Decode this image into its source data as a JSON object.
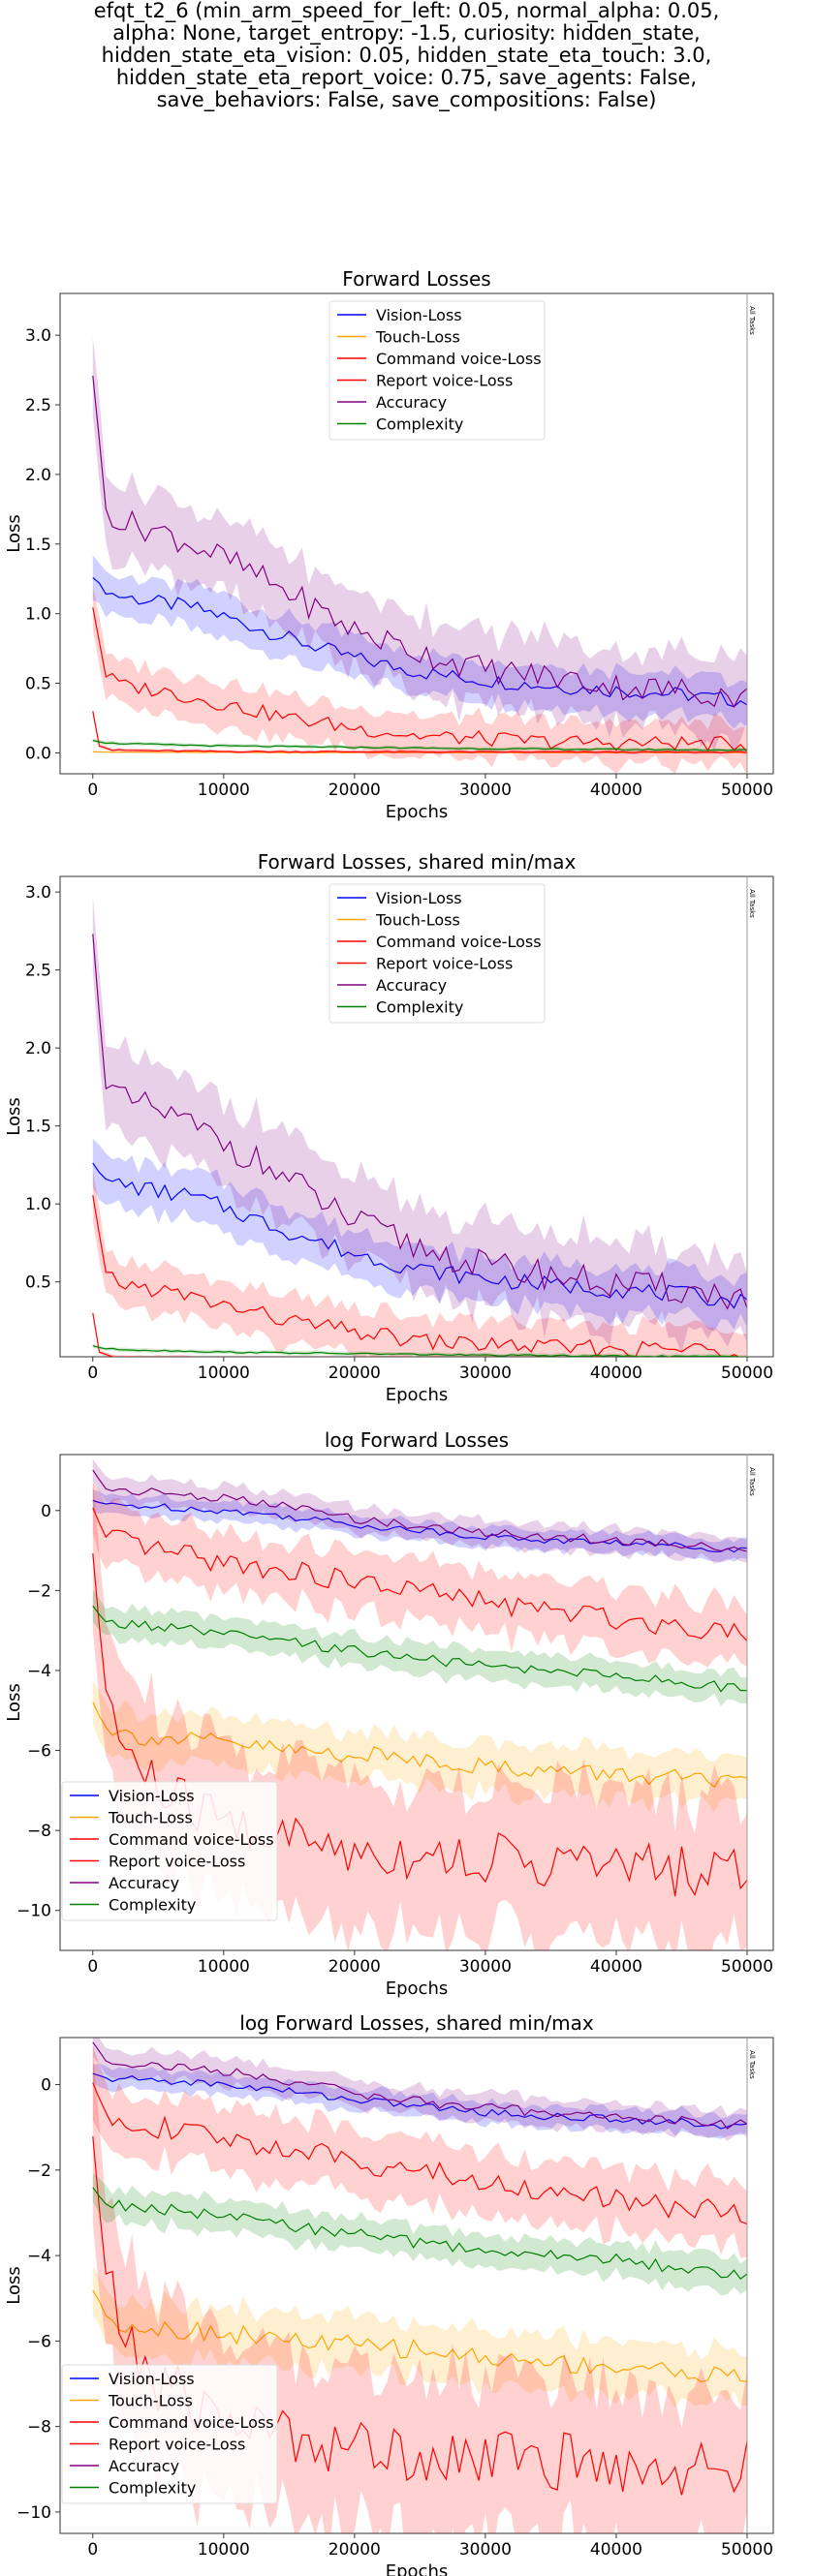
{
  "suptitle_lines": [
    "efqt_t2_6 (min_arm_speed_for_left: 0.05, normal_alpha: 0.05,",
    "alpha: None, target_entropy: -1.5, curiosity: hidden_state,",
    "hidden_state_eta_vision: 0.05, hidden_state_eta_touch: 3.0,",
    "hidden_state_eta_report_voice: 0.75, save_agents: False,",
    "save_behaviors: False, save_compositions: False)"
  ],
  "colors": {
    "vision": "#0000ff",
    "touch": "#ffa500",
    "command": "#ff0000",
    "report": "#ff0000",
    "accuracy": "#800080",
    "complexity": "#008000"
  },
  "chart_data": [
    {
      "type": "line",
      "title": "Forward Losses",
      "xlabel": "Epochs",
      "ylabel": "Loss",
      "xlim": [
        -2500,
        52000
      ],
      "ylim": [
        -0.15,
        3.3
      ],
      "xticks": [
        0,
        10000,
        20000,
        30000,
        40000,
        50000
      ],
      "yticks": [
        0.0,
        0.5,
        1.0,
        1.5,
        2.0,
        2.5,
        3.0
      ],
      "ytick_labels": [
        "0.0",
        "0.5",
        "1.0",
        "1.5",
        "2.0",
        "2.5",
        "3.0"
      ],
      "legend_position": "upper center",
      "vline": {
        "x": 50000,
        "label": "All Tasks"
      },
      "series": [
        {
          "name": "Vision-Loss",
          "color": "vision",
          "x": [
            0,
            1000,
            2500,
            5000,
            7500,
            10000,
            15000,
            20000,
            25000,
            30000,
            35000,
            40000,
            45000,
            50000
          ],
          "values": [
            1.27,
            1.15,
            1.12,
            1.08,
            1.05,
            0.98,
            0.82,
            0.68,
            0.58,
            0.52,
            0.48,
            0.45,
            0.42,
            0.37
          ],
          "band": 0.12
        },
        {
          "name": "Touch-Loss",
          "color": "touch",
          "x": [
            0,
            1000,
            5000,
            10000,
            20000,
            30000,
            40000,
            50000
          ],
          "values": [
            0.008,
            0.005,
            0.004,
            0.004,
            0.003,
            0.003,
            0.003,
            0.003
          ],
          "band": 0.003
        },
        {
          "name": "Command voice-Loss",
          "color": "command",
          "x": [
            0,
            500,
            1500,
            5000,
            10000,
            20000,
            30000,
            40000,
            50000
          ],
          "values": [
            0.3,
            0.05,
            0.02,
            0.015,
            0.01,
            0.008,
            0.006,
            0.006,
            0.005
          ],
          "band": 0.01
        },
        {
          "name": "Report voice-Loss",
          "color": "report",
          "x": [
            0,
            1000,
            2500,
            5000,
            7500,
            10000,
            15000,
            20000,
            25000,
            30000,
            35000,
            40000,
            45000,
            50000
          ],
          "values": [
            1.05,
            0.55,
            0.48,
            0.45,
            0.4,
            0.35,
            0.25,
            0.18,
            0.12,
            0.1,
            0.08,
            0.07,
            0.07,
            0.06
          ],
          "band": 0.12
        },
        {
          "name": "Accuracy",
          "color": "accuracy",
          "x": [
            0,
            1000,
            2500,
            5000,
            7500,
            10000,
            15000,
            20000,
            25000,
            30000,
            35000,
            40000,
            45000,
            50000
          ],
          "values": [
            2.72,
            1.75,
            1.65,
            1.6,
            1.5,
            1.4,
            1.15,
            0.88,
            0.72,
            0.6,
            0.55,
            0.48,
            0.45,
            0.4
          ],
          "band": 0.22
        },
        {
          "name": "Complexity",
          "color": "complexity",
          "x": [
            0,
            1000,
            5000,
            10000,
            20000,
            30000,
            40000,
            50000
          ],
          "values": [
            0.09,
            0.07,
            0.06,
            0.05,
            0.04,
            0.03,
            0.025,
            0.02
          ],
          "band": 0.01
        }
      ]
    },
    {
      "type": "line",
      "title": "Forward Losses, shared min/max",
      "xlabel": "Epochs",
      "ylabel": "Loss",
      "xlim": [
        -2500,
        52000
      ],
      "ylim": [
        0.02,
        3.1
      ],
      "xticks": [
        0,
        10000,
        20000,
        30000,
        40000,
        50000
      ],
      "yticks": [
        0.5,
        1.0,
        1.5,
        2.0,
        2.5,
        3.0
      ],
      "ytick_labels": [
        "0.5",
        "1.0",
        "1.5",
        "2.0",
        "2.5",
        "3.0"
      ],
      "legend_position": "upper center",
      "vline": {
        "x": 50000,
        "label": "All Tasks"
      },
      "series": [
        {
          "name": "Vision-Loss",
          "color": "vision",
          "x": [
            0,
            1000,
            2500,
            5000,
            7500,
            10000,
            15000,
            20000,
            25000,
            30000,
            35000,
            40000,
            45000,
            50000
          ],
          "values": [
            1.27,
            1.15,
            1.12,
            1.08,
            1.05,
            0.98,
            0.82,
            0.68,
            0.58,
            0.52,
            0.48,
            0.45,
            0.42,
            0.37
          ],
          "band": 0.12
        },
        {
          "name": "Touch-Loss",
          "color": "touch",
          "x": [
            0,
            1000,
            5000,
            10000,
            20000,
            30000,
            40000,
            50000
          ],
          "values": [
            0.008,
            0.005,
            0.004,
            0.004,
            0.003,
            0.003,
            0.003,
            0.003
          ],
          "band": 0.003
        },
        {
          "name": "Command voice-Loss",
          "color": "command",
          "x": [
            0,
            500,
            1500,
            5000,
            10000,
            20000,
            30000,
            40000,
            50000
          ],
          "values": [
            0.3,
            0.05,
            0.02,
            0.015,
            0.01,
            0.008,
            0.006,
            0.006,
            0.005
          ],
          "band": 0.01
        },
        {
          "name": "Report voice-Loss",
          "color": "report",
          "x": [
            0,
            1000,
            2500,
            5000,
            7500,
            10000,
            15000,
            20000,
            25000,
            30000,
            35000,
            40000,
            45000,
            50000
          ],
          "values": [
            1.05,
            0.55,
            0.48,
            0.45,
            0.4,
            0.35,
            0.25,
            0.18,
            0.12,
            0.1,
            0.08,
            0.07,
            0.07,
            0.06
          ],
          "band": 0.12
        },
        {
          "name": "Accuracy",
          "color": "accuracy",
          "x": [
            0,
            1000,
            2500,
            5000,
            7500,
            10000,
            15000,
            20000,
            25000,
            30000,
            35000,
            40000,
            45000,
            50000
          ],
          "values": [
            2.72,
            1.75,
            1.65,
            1.6,
            1.5,
            1.4,
            1.15,
            0.88,
            0.72,
            0.6,
            0.55,
            0.48,
            0.45,
            0.4
          ],
          "band": 0.22
        },
        {
          "name": "Complexity",
          "color": "complexity",
          "x": [
            0,
            1000,
            5000,
            10000,
            20000,
            30000,
            40000,
            50000
          ],
          "values": [
            0.09,
            0.07,
            0.06,
            0.05,
            0.04,
            0.03,
            0.025,
            0.02
          ],
          "band": 0.01
        }
      ]
    },
    {
      "type": "line",
      "title": "log Forward Losses",
      "xlabel": "Epochs",
      "ylabel": "Loss",
      "xlim": [
        -2500,
        52000
      ],
      "ylim": [
        -11,
        1.4
      ],
      "xticks": [
        0,
        10000,
        20000,
        30000,
        40000,
        50000
      ],
      "yticks": [
        0,
        -2,
        -4,
        -6,
        -8,
        -10
      ],
      "ytick_labels": [
        "0",
        "−2",
        "−4",
        "−6",
        "−8",
        "−10"
      ],
      "legend_position": "lower left",
      "vline": {
        "x": 50000,
        "label": "All Tasks"
      },
      "series": [
        {
          "name": "Vision-Loss",
          "color": "vision",
          "x": [
            0,
            1000,
            5000,
            10000,
            15000,
            20000,
            25000,
            30000,
            35000,
            40000,
            45000,
            50000
          ],
          "values": [
            0.25,
            0.15,
            0.1,
            0.0,
            -0.15,
            -0.35,
            -0.5,
            -0.65,
            -0.75,
            -0.8,
            -0.88,
            -1.0
          ],
          "band": 0.2
        },
        {
          "name": "Touch-Loss",
          "color": "touch",
          "x": [
            0,
            1000,
            2500,
            5000,
            10000,
            15000,
            20000,
            25000,
            30000,
            35000,
            40000,
            45000,
            50000
          ],
          "values": [
            -4.8,
            -5.4,
            -5.6,
            -5.7,
            -5.8,
            -6.0,
            -6.1,
            -6.2,
            -6.4,
            -6.5,
            -6.6,
            -6.7,
            -6.9
          ],
          "band": 0.5
        },
        {
          "name": "Command voice-Loss",
          "color": "command",
          "x": [
            0,
            1000,
            2500,
            5000,
            10000,
            15000,
            20000,
            25000,
            30000,
            35000,
            40000,
            45000,
            50000
          ],
          "values": [
            -1.2,
            -4.5,
            -6.0,
            -7.0,
            -7.8,
            -8.2,
            -8.5,
            -8.6,
            -8.7,
            -8.8,
            -8.9,
            -9.0,
            -9.0
          ],
          "band": 1.5
        },
        {
          "name": "Report voice-Loss",
          "color": "report",
          "x": [
            0,
            1000,
            2500,
            5000,
            10000,
            15000,
            20000,
            25000,
            30000,
            35000,
            40000,
            45000,
            50000
          ],
          "values": [
            0.05,
            -0.7,
            -0.8,
            -1.0,
            -1.3,
            -1.5,
            -1.8,
            -2.0,
            -2.3,
            -2.5,
            -2.7,
            -2.9,
            -3.0
          ],
          "band": 0.6
        },
        {
          "name": "Accuracy",
          "color": "accuracy",
          "x": [
            0,
            1000,
            5000,
            10000,
            15000,
            20000,
            25000,
            30000,
            35000,
            40000,
            45000,
            50000
          ],
          "values": [
            1.0,
            0.55,
            0.45,
            0.3,
            0.1,
            -0.2,
            -0.4,
            -0.55,
            -0.65,
            -0.75,
            -0.85,
            -0.95
          ],
          "band": 0.25
        },
        {
          "name": "Complexity",
          "color": "complexity",
          "x": [
            0,
            1000,
            5000,
            10000,
            15000,
            20000,
            25000,
            30000,
            35000,
            40000,
            45000,
            50000
          ],
          "values": [
            -2.4,
            -2.8,
            -2.9,
            -3.1,
            -3.3,
            -3.5,
            -3.7,
            -3.9,
            -4.0,
            -4.1,
            -4.3,
            -4.5
          ],
          "band": 0.3
        }
      ]
    },
    {
      "type": "line",
      "title": "log Forward Losses, shared min/max",
      "xlabel": "Epochs",
      "ylabel": "Loss",
      "xlim": [
        -2500,
        52000
      ],
      "ylim": [
        -10.5,
        1.1
      ],
      "xticks": [
        0,
        10000,
        20000,
        30000,
        40000,
        50000
      ],
      "yticks": [
        0,
        -2,
        -4,
        -6,
        -8,
        -10
      ],
      "ytick_labels": [
        "0",
        "−2",
        "−4",
        "−6",
        "−8",
        "−10"
      ],
      "legend_position": "lower left",
      "vline": {
        "x": 50000,
        "label": "All Tasks"
      },
      "series": [
        {
          "name": "Vision-Loss",
          "color": "vision",
          "x": [
            0,
            1000,
            5000,
            10000,
            15000,
            20000,
            25000,
            30000,
            35000,
            40000,
            45000,
            50000
          ],
          "values": [
            0.25,
            0.15,
            0.1,
            0.0,
            -0.15,
            -0.35,
            -0.5,
            -0.65,
            -0.75,
            -0.8,
            -0.88,
            -1.0
          ],
          "band": 0.2
        },
        {
          "name": "Touch-Loss",
          "color": "touch",
          "x": [
            0,
            1000,
            2500,
            5000,
            10000,
            15000,
            20000,
            25000,
            30000,
            35000,
            40000,
            45000,
            50000
          ],
          "values": [
            -4.8,
            -5.4,
            -5.6,
            -5.7,
            -5.8,
            -6.0,
            -6.1,
            -6.2,
            -6.4,
            -6.5,
            -6.6,
            -6.7,
            -6.9
          ],
          "band": 0.5
        },
        {
          "name": "Command voice-Loss",
          "color": "command",
          "x": [
            0,
            1000,
            2500,
            5000,
            10000,
            15000,
            20000,
            25000,
            30000,
            35000,
            40000,
            45000,
            50000
          ],
          "values": [
            -1.2,
            -4.5,
            -6.0,
            -7.0,
            -7.8,
            -8.2,
            -8.5,
            -8.6,
            -8.7,
            -8.8,
            -8.9,
            -9.0,
            -9.0
          ],
          "band": 1.5
        },
        {
          "name": "Report voice-Loss",
          "color": "report",
          "x": [
            0,
            1000,
            2500,
            5000,
            10000,
            15000,
            20000,
            25000,
            30000,
            35000,
            40000,
            45000,
            50000
          ],
          "values": [
            0.05,
            -0.7,
            -0.8,
            -1.0,
            -1.3,
            -1.5,
            -1.8,
            -2.0,
            -2.3,
            -2.5,
            -2.7,
            -2.9,
            -3.0
          ],
          "band": 0.6
        },
        {
          "name": "Accuracy",
          "color": "accuracy",
          "x": [
            0,
            1000,
            5000,
            10000,
            15000,
            20000,
            25000,
            30000,
            35000,
            40000,
            45000,
            50000
          ],
          "values": [
            1.0,
            0.55,
            0.45,
            0.3,
            0.1,
            -0.2,
            -0.4,
            -0.55,
            -0.65,
            -0.75,
            -0.85,
            -0.95
          ],
          "band": 0.25
        },
        {
          "name": "Complexity",
          "color": "complexity",
          "x": [
            0,
            1000,
            5000,
            10000,
            15000,
            20000,
            25000,
            30000,
            35000,
            40000,
            45000,
            50000
          ],
          "values": [
            -2.4,
            -2.8,
            -2.9,
            -3.1,
            -3.3,
            -3.5,
            -3.7,
            -3.9,
            -4.0,
            -4.1,
            -4.3,
            -4.5
          ],
          "band": 0.3
        }
      ]
    }
  ]
}
